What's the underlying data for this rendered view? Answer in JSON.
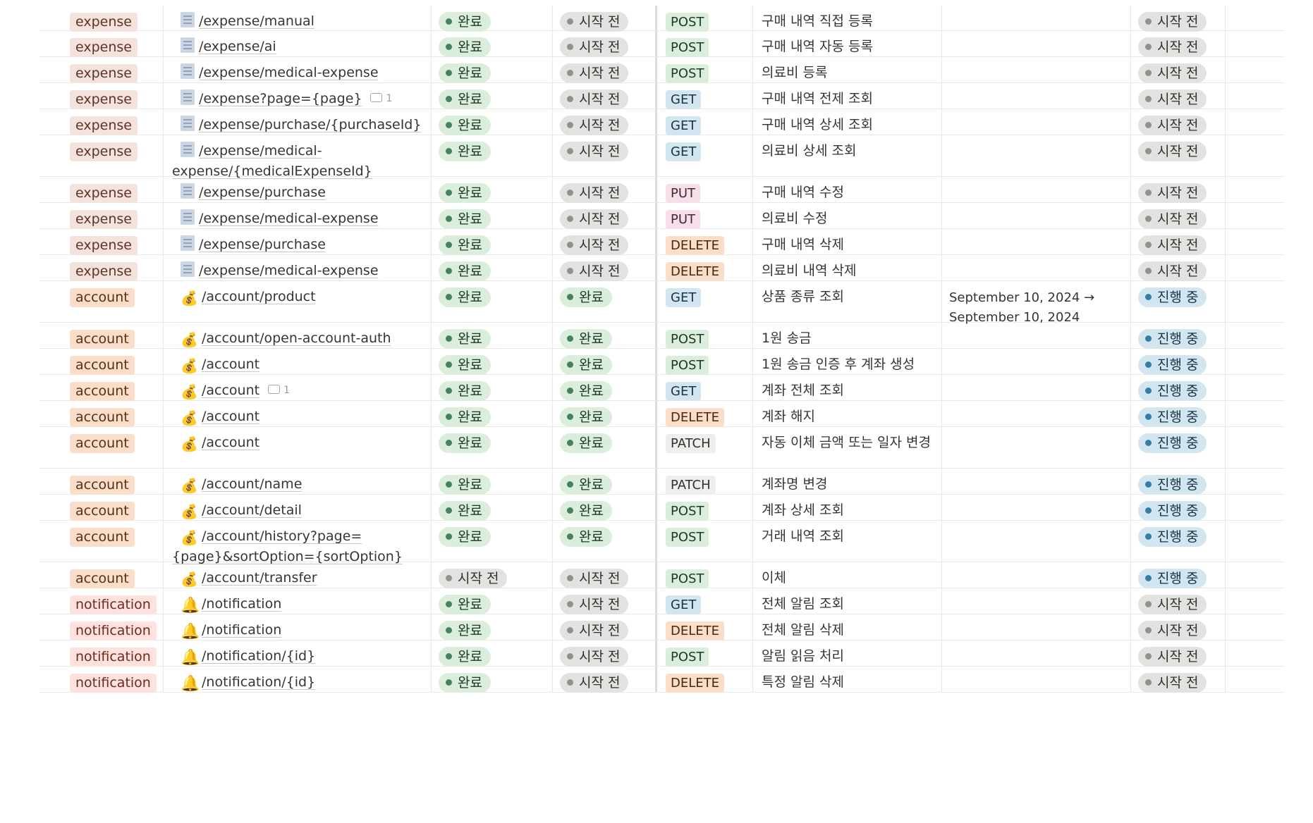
{
  "rows": [
    {
      "category": "expense",
      "icon": "document-icon",
      "endpoint": "/expense/manual",
      "comments": "",
      "col_a": "완료",
      "col_b": "시작 전",
      "method": "POST",
      "description": "구매 내역 직접 등록",
      "date": "",
      "status": "시작 전"
    },
    {
      "category": "expense",
      "icon": "document-icon",
      "endpoint": "/expense/ai",
      "comments": "",
      "col_a": "완료",
      "col_b": "시작 전",
      "method": "POST",
      "description": "구매 내역 자동 등록",
      "date": "",
      "status": "시작 전"
    },
    {
      "category": "expense",
      "icon": "document-icon",
      "endpoint": "/expense/medical-expense",
      "comments": "",
      "col_a": "완료",
      "col_b": "시작 전",
      "method": "POST",
      "description": "의료비 등록",
      "date": "",
      "status": "시작 전"
    },
    {
      "category": "expense",
      "icon": "document-icon",
      "endpoint": "/expense?page={page}",
      "comments": "1",
      "col_a": "완료",
      "col_b": "시작 전",
      "method": "GET",
      "description": "구매 내역 전제 조회",
      "date": "",
      "status": "시작 전"
    },
    {
      "category": "expense",
      "icon": "document-icon",
      "endpoint": "/expense/purchase/{purchaseId}",
      "comments": "",
      "col_a": "완료",
      "col_b": "시작 전",
      "method": "GET",
      "description": "구매 내역 상세 조회",
      "date": "",
      "status": "시작 전"
    },
    {
      "category": "expense",
      "icon": "document-icon",
      "endpoint": "/expense/medical-expense/{medicalExpenseId}",
      "comments": "",
      "col_a": "완료",
      "col_b": "시작 전",
      "method": "GET",
      "description": "의료비 상세 조회",
      "date": "",
      "status": "시작 전"
    },
    {
      "category": "expense",
      "icon": "document-icon",
      "endpoint": "/expense/purchase",
      "comments": "",
      "col_a": "완료",
      "col_b": "시작 전",
      "method": "PUT",
      "description": "구매 내역 수정",
      "date": "",
      "status": "시작 전"
    },
    {
      "category": "expense",
      "icon": "document-icon",
      "endpoint": "/expense/medical-expense",
      "comments": "",
      "col_a": "완료",
      "col_b": "시작 전",
      "method": "PUT",
      "description": "의료비 수정",
      "date": "",
      "status": "시작 전"
    },
    {
      "category": "expense",
      "icon": "document-icon",
      "endpoint": "/expense/purchase",
      "comments": "",
      "col_a": "완료",
      "col_b": "시작 전",
      "method": "DELETE",
      "description": "구매 내역 삭제",
      "date": "",
      "status": "시작 전"
    },
    {
      "category": "expense",
      "icon": "document-icon",
      "endpoint": "/expense/medical-expense",
      "comments": "",
      "col_a": "완료",
      "col_b": "시작 전",
      "method": "DELETE",
      "description": "의료비 내역 삭제",
      "date": "",
      "status": "시작 전"
    },
    {
      "category": "account",
      "icon": "money-bag-icon",
      "endpoint": "/account/product",
      "comments": "",
      "col_a": "완료",
      "col_b": "완료",
      "method": "GET",
      "description": "상품 종류 조회",
      "date": "September 10, 2024 → September 10, 2024",
      "status": "진행 중"
    },
    {
      "category": "account",
      "icon": "money-bag-icon",
      "endpoint": "/account/open-account-auth",
      "comments": "",
      "col_a": "완료",
      "col_b": "완료",
      "method": "POST",
      "description": "1원 송금",
      "date": "",
      "status": "진행 중"
    },
    {
      "category": "account",
      "icon": "money-bag-icon",
      "endpoint": "/account",
      "comments": "",
      "col_a": "완료",
      "col_b": "완료",
      "method": "POST",
      "description": "1원 송금 인증 후 계좌 생성",
      "date": "",
      "status": "진행 중"
    },
    {
      "category": "account",
      "icon": "money-bag-icon",
      "endpoint": "/account",
      "comments": "1",
      "col_a": "완료",
      "col_b": "완료",
      "method": "GET",
      "description": "계좌 전체 조회",
      "date": "",
      "status": "진행 중"
    },
    {
      "category": "account",
      "icon": "money-bag-icon",
      "endpoint": "/account",
      "comments": "",
      "col_a": "완료",
      "col_b": "완료",
      "method": "DELETE",
      "description": "계좌 해지",
      "date": "",
      "status": "진행 중"
    },
    {
      "category": "account",
      "icon": "money-bag-icon",
      "endpoint": "/account",
      "comments": "",
      "col_a": "완료",
      "col_b": "완료",
      "method": "PATCH",
      "description": "자동 이체 금액 또는 일자 변경",
      "date": "",
      "status": "진행 중"
    },
    {
      "category": "account",
      "icon": "money-bag-icon",
      "endpoint": "/account/name",
      "comments": "",
      "col_a": "완료",
      "col_b": "완료",
      "method": "PATCH",
      "description": "계좌명 변경",
      "date": "",
      "status": "진행 중"
    },
    {
      "category": "account",
      "icon": "money-bag-icon",
      "endpoint": "/account/detail",
      "comments": "",
      "col_a": "완료",
      "col_b": "완료",
      "method": "POST",
      "description": "계좌 상세 조회",
      "date": "",
      "status": "진행 중"
    },
    {
      "category": "account",
      "icon": "money-bag-icon",
      "endpoint": "/account/history?page={page}&sortOption={sortOption}",
      "comments": "",
      "col_a": "완료",
      "col_b": "완료",
      "method": "POST",
      "description": "거래 내역 조회",
      "date": "",
      "status": "진행 중"
    },
    {
      "category": "account",
      "icon": "money-bag-icon",
      "endpoint": "/account/transfer",
      "comments": "",
      "col_a": "시작 전",
      "col_b": "시작 전",
      "method": "POST",
      "description": "이체",
      "date": "",
      "status": "진행 중"
    },
    {
      "category": "notification",
      "icon": "bell-icon",
      "endpoint": "/notification",
      "comments": "",
      "col_a": "완료",
      "col_b": "시작 전",
      "method": "GET",
      "description": "전체 알림 조회",
      "date": "",
      "status": "시작 전"
    },
    {
      "category": "notification",
      "icon": "bell-icon",
      "endpoint": "/notification",
      "comments": "",
      "col_a": "완료",
      "col_b": "시작 전",
      "method": "DELETE",
      "description": "전체 알림 삭제",
      "date": "",
      "status": "시작 전"
    },
    {
      "category": "notification",
      "icon": "bell-icon",
      "endpoint": "/notification/{id}",
      "comments": "",
      "col_a": "완료",
      "col_b": "시작 전",
      "method": "POST",
      "description": "알림 읽음 처리",
      "date": "",
      "status": "시작 전"
    },
    {
      "category": "notification",
      "icon": "bell-icon",
      "endpoint": "/notification/{id}",
      "comments": "",
      "col_a": "완료",
      "col_b": "시작 전",
      "method": "DELETE",
      "description": "특정 알림 삭제",
      "date": "",
      "status": "시작 전"
    }
  ],
  "status_classes": {
    "완료": "done",
    "시작 전": "todo",
    "진행 중": "prog"
  },
  "icon_glyphs": {
    "money-bag-icon": "💰",
    "bell-icon": "🔔"
  },
  "colors": {
    "done_bg": "#dbeddb",
    "todo_bg": "#e3e2e0",
    "in_progress_bg": "#d3e5ef",
    "grid_line": "#e9e9e7"
  }
}
